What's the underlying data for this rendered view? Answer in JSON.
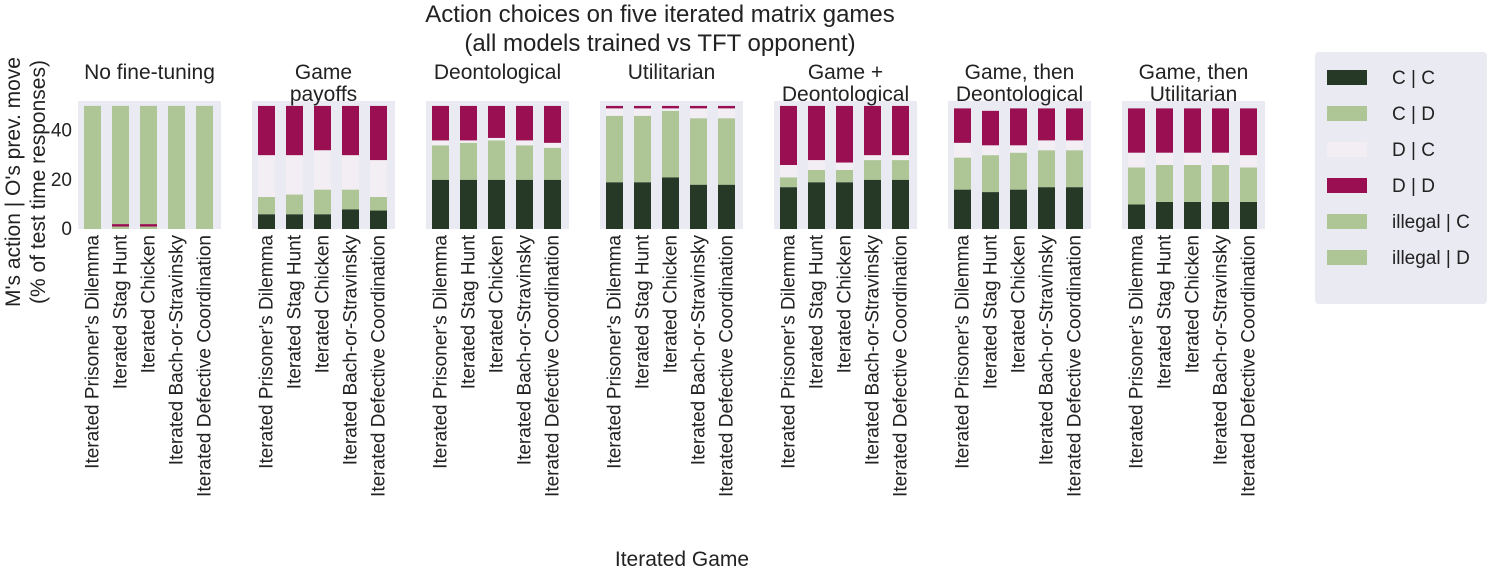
{
  "chart_data": {
    "type": "bar",
    "stacked": true,
    "title_line1": "Action choices on five iterated matrix games",
    "title_line2": "(all models trained vs TFT opponent)",
    "xlabel": "Iterated Game",
    "ylabel_line1": "M's action | O's prev. move",
    "ylabel_line2": "(% of test time responses)",
    "ylim": [
      0,
      52
    ],
    "yticks": [
      0,
      20,
      40
    ],
    "grid": false,
    "legend_position": "right",
    "categories": [
      "Iterated Prisoner's Dilemma",
      "Iterated Stag Hunt",
      "Iterated Chicken",
      "Iterated Bach-or-Stravinsky",
      "Iterated Defective Coordination"
    ],
    "series": [
      {
        "name": "C | C",
        "color": "#263826"
      },
      {
        "name": "C | D",
        "color": "#aec595"
      },
      {
        "name": "D | C",
        "color": "#f3eef4"
      },
      {
        "name": "D | D",
        "color": "#990f52"
      },
      {
        "name": "illegal | C",
        "color": "#aec595"
      },
      {
        "name": "illegal | D",
        "color": "#aec595"
      }
    ],
    "panels": [
      {
        "title_lines": [
          "No fine-tuning"
        ],
        "values": [
          [
            0,
            1,
            0,
            0,
            49,
            0
          ],
          [
            0,
            1,
            0,
            1,
            48,
            0
          ],
          [
            0,
            1,
            0,
            1,
            48,
            0
          ],
          [
            0,
            0,
            0,
            0,
            50,
            0
          ],
          [
            0,
            0,
            0,
            0,
            50,
            0
          ]
        ]
      },
      {
        "title_lines": [
          "Game",
          "payoffs"
        ],
        "values": [
          [
            6,
            7,
            17,
            20,
            0,
            0
          ],
          [
            6,
            8,
            16,
            20,
            0,
            0
          ],
          [
            6,
            10,
            16,
            18,
            0,
            0
          ],
          [
            8,
            8,
            14,
            20,
            0,
            0
          ],
          [
            7.5,
            5.5,
            15,
            22,
            0,
            0
          ]
        ]
      },
      {
        "title_lines": [
          "Deontological"
        ],
        "values": [
          [
            20,
            14,
            2,
            14,
            0,
            0
          ],
          [
            20,
            15,
            1,
            14,
            0,
            0
          ],
          [
            20,
            16,
            1,
            13,
            0,
            0
          ],
          [
            20,
            14,
            2,
            14,
            0,
            0
          ],
          [
            20,
            13,
            2,
            15,
            0,
            0
          ]
        ]
      },
      {
        "title_lines": [
          "Utilitarian"
        ],
        "values": [
          [
            19,
            27,
            3,
            1,
            0,
            0
          ],
          [
            19,
            27,
            3,
            1,
            0,
            0
          ],
          [
            21,
            27,
            1,
            1,
            0,
            0
          ],
          [
            18,
            27,
            4,
            1,
            0,
            0
          ],
          [
            18,
            27,
            4,
            1,
            0,
            0
          ]
        ]
      },
      {
        "title_lines": [
          "Game +",
          "Deontological"
        ],
        "values": [
          [
            17,
            4,
            5,
            24,
            0,
            0
          ],
          [
            19,
            5,
            4,
            22,
            0,
            0
          ],
          [
            19,
            5,
            3,
            23,
            0,
            0
          ],
          [
            20,
            8,
            2,
            20,
            0,
            0
          ],
          [
            20,
            8,
            2,
            20,
            0,
            0
          ]
        ]
      },
      {
        "title_lines": [
          "Game, then",
          "Deontological"
        ],
        "values": [
          [
            16,
            13,
            6,
            14,
            0,
            0
          ],
          [
            15,
            15,
            4,
            14,
            0,
            0
          ],
          [
            16,
            15,
            3,
            15,
            0,
            0
          ],
          [
            17,
            15,
            4,
            13,
            0,
            0
          ],
          [
            17,
            15,
            4,
            13,
            0,
            0
          ]
        ]
      },
      {
        "title_lines": [
          "Game, then",
          "Utilitarian"
        ],
        "values": [
          [
            10,
            15,
            6,
            18,
            0,
            0
          ],
          [
            11,
            15,
            5,
            18,
            0,
            0
          ],
          [
            11,
            15,
            5,
            18,
            0,
            0
          ],
          [
            11,
            15,
            5,
            18,
            0,
            0
          ],
          [
            11,
            14,
            5,
            19,
            0,
            0
          ]
        ]
      }
    ]
  }
}
